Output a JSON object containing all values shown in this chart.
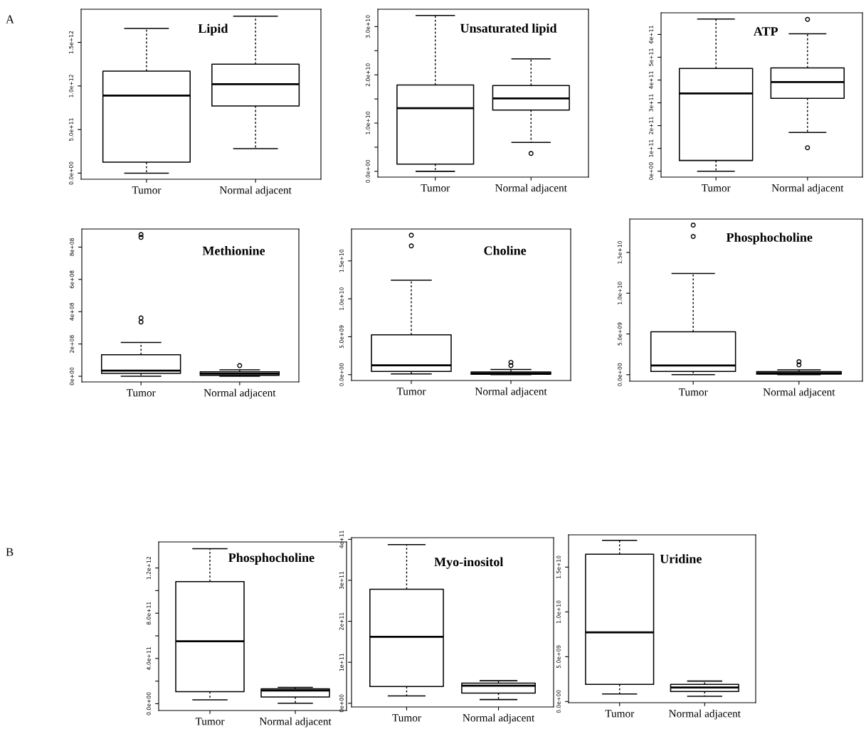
{
  "chart_data": [
    {
      "type": "box",
      "title": "Lipid",
      "annotations": [
        "A"
      ],
      "categories": [
        "Tumor",
        "Normal adjacent"
      ],
      "ylim": [
        -70000000000.0,
        1880000000000.0
      ],
      "yticks": [
        {
          "value": 0,
          "label": "0.0e+00"
        },
        {
          "value": 500000000000.0,
          "label": "5.0e+11"
        },
        {
          "value": 1000000000000.0,
          "label": "1.0e+12"
        },
        {
          "value": 1500000000000.0,
          "label": "1.5e+12"
        }
      ],
      "boxes": [
        {
          "low": 0,
          "q1": 125000000000.0,
          "median": 890000000000.0,
          "q3": 1170000000000.0,
          "high": 1660000000000.0
        },
        {
          "low": 280000000000.0,
          "q1": 770000000000.0,
          "median": 1020000000000.0,
          "q3": 1250000000000.0,
          "high": 1800000000000.0
        }
      ]
    },
    {
      "type": "box",
      "title": "Unsaturated lipid",
      "categories": [
        "Tumor",
        "Normal adjacent"
      ],
      "ylim": [
        -1200000000.0,
        33600000000.0
      ],
      "yticks": [
        {
          "value": 0,
          "label": "0.0e+00"
        },
        {
          "value": 5000000000.0,
          "label": null
        },
        {
          "value": 10000000000.0,
          "label": "1.0e+10"
        },
        {
          "value": 15000000000.0,
          "label": null
        },
        {
          "value": 20000000000.0,
          "label": "2.0e+10"
        },
        {
          "value": 25000000000.0,
          "label": null
        },
        {
          "value": 30000000000.0,
          "label": "3.0e+10"
        }
      ],
      "boxes": [
        {
          "low": 0,
          "q1": 1500000000.0,
          "median": 13100000000.0,
          "q3": 17900000000.0,
          "high": 32300000000.0
        },
        {
          "low": 6000000000.0,
          "q1": 12700000000.0,
          "median": 15100000000.0,
          "q3": 17800000000.0,
          "high": 23300000000.0,
          "outliers": [
            3700000000.0
          ]
        }
      ]
    },
    {
      "type": "box",
      "title": "ATP",
      "categories": [
        "Tumor",
        "Normal adjacent"
      ],
      "ylim": [
        -26000000000.0,
        695000000000.0
      ],
      "yticks": [
        {
          "value": 0,
          "label": "0e+00"
        },
        {
          "value": 100000000000.0,
          "label": "1e+11"
        },
        {
          "value": 200000000000.0,
          "label": "2e+11"
        },
        {
          "value": 300000000000.0,
          "label": "3e+11"
        },
        {
          "value": 400000000000.0,
          "label": "4e+11"
        },
        {
          "value": 500000000000.0,
          "label": "5e+11"
        },
        {
          "value": 600000000000.0,
          "label": "6e+11"
        }
      ],
      "boxes": [
        {
          "low": 0,
          "q1": 47000000000.0,
          "median": 341000000000.0,
          "q3": 451000000000.0,
          "high": 668000000000.0
        },
        {
          "low": 170000000000.0,
          "q1": 320000000000.0,
          "median": 391000000000.0,
          "q3": 453000000000.0,
          "high": 603000000000.0,
          "outliers": [
            103000000000.0,
            666000000000.0
          ]
        }
      ]
    },
    {
      "type": "box",
      "title": "Methionine",
      "categories": [
        "Tumor",
        "Normal adjacent"
      ],
      "ylim": [
        -35000000.0,
        912000000.0
      ],
      "yticks": [
        {
          "value": 0,
          "label": "0e+00"
        },
        {
          "value": 200000000.0,
          "label": "2e+08"
        },
        {
          "value": 400000000.0,
          "label": "4e+08"
        },
        {
          "value": 600000000.0,
          "label": "6e+08"
        },
        {
          "value": 800000000.0,
          "label": "8e+08"
        }
      ],
      "boxes": [
        {
          "low": 0,
          "q1": 18000000.0,
          "median": 35000000.0,
          "q3": 133000000.0,
          "high": 209000000.0,
          "outliers": [
            336000000.0,
            361000000.0,
            860000000.0,
            878000000.0
          ]
        },
        {
          "low": 0,
          "q1": 6000000.0,
          "median": 16000000.0,
          "q3": 28000000.0,
          "high": 40000000.0,
          "outliers": [
            66000000.0
          ]
        }
      ]
    },
    {
      "type": "box",
      "title": "Choline",
      "categories": [
        "Tumor",
        "Normal adjacent"
      ],
      "ylim": [
        -770000000.0,
        19200000000.0
      ],
      "yticks": [
        {
          "value": 0,
          "label": "0.0e+00"
        },
        {
          "value": 5000000000.0,
          "label": "5.0e+09"
        },
        {
          "value": 10000000000.0,
          "label": "1.0e+10"
        },
        {
          "value": 15000000000.0,
          "label": "1.5e+10"
        }
      ],
      "boxes": [
        {
          "low": 100000000.0,
          "q1": 430000000.0,
          "median": 1240000000.0,
          "q3": 5260000000.0,
          "high": 12440000000.0,
          "outliers": [
            16970000000.0,
            18380000000.0
          ]
        },
        {
          "low": 0,
          "q1": 50000000.0,
          "median": 180000000.0,
          "q3": 350000000.0,
          "high": 680000000.0,
          "outliers": [
            1200000000.0,
            1630000000.0
          ]
        }
      ]
    },
    {
      "type": "box",
      "title": "Phosphocholine",
      "categories": [
        "Tumor",
        "Normal adjacent"
      ],
      "ylim": [
        -800000000.0,
        19100000000.0
      ],
      "yticks": [
        {
          "value": 0,
          "label": "0.0e+00"
        },
        {
          "value": 5000000000.0,
          "label": "5.0e+09"
        },
        {
          "value": 10000000000.0,
          "label": "1.0e+10"
        },
        {
          "value": 15000000000.0,
          "label": "1.5e+10"
        }
      ],
      "boxes": [
        {
          "low": 0,
          "q1": 400000000.0,
          "median": 1130000000.0,
          "q3": 5270000000.0,
          "high": 12420000000.0,
          "outliers": [
            16960000000.0,
            18360000000.0
          ]
        },
        {
          "low": 0,
          "q1": 80000000.0,
          "median": 200000000.0,
          "q3": 370000000.0,
          "high": 600000000.0,
          "outliers": [
            1200000000.0,
            1600000000.0
          ]
        }
      ]
    },
    {
      "type": "box",
      "title": "Phosphocholine",
      "annotations": [
        "B"
      ],
      "categories": [
        "Tumor",
        "Normal adjacent"
      ],
      "ylim": [
        -60000000000.0,
        1430000000000.0
      ],
      "yticks": [
        {
          "value": 0,
          "label": "0.0e+00"
        },
        {
          "value": 200000000000.0,
          "label": null
        },
        {
          "value": 400000000000.0,
          "label": "4.0e+11"
        },
        {
          "value": 600000000000.0,
          "label": null
        },
        {
          "value": 800000000000.0,
          "label": "8.0e+11"
        },
        {
          "value": 1000000000000.0,
          "label": null
        },
        {
          "value": 1200000000000.0,
          "label": "1.2e+12"
        }
      ],
      "boxes": [
        {
          "low": 35000000000.0,
          "q1": 106000000000.0,
          "median": 552000000000.0,
          "q3": 1080000000000.0,
          "high": 1370000000000.0
        },
        {
          "low": 4000000000.0,
          "q1": 60000000000.0,
          "median": 117000000000.0,
          "q3": 131000000000.0,
          "high": 145000000000.0
        }
      ]
    },
    {
      "type": "box",
      "title": "Myo-inositol",
      "categories": [
        "Tumor",
        "Normal adjacent"
      ],
      "ylim": [
        -9000000000.0,
        404000000000.0
      ],
      "yticks": [
        {
          "value": 0,
          "label": "0e+00"
        },
        {
          "value": 100000000000.0,
          "label": "1e+11"
        },
        {
          "value": 200000000000.0,
          "label": "2e+11"
        },
        {
          "value": 300000000000.0,
          "label": "3e+11"
        },
        {
          "value": 400000000000.0,
          "label": "4e+11"
        }
      ],
      "boxes": [
        {
          "low": 18000000000.0,
          "q1": 41000000000.0,
          "median": 162000000000.0,
          "q3": 278000000000.0,
          "high": 387000000000.0
        },
        {
          "low": 9000000000.0,
          "q1": 25000000000.0,
          "median": 43000000000.0,
          "q3": 49000000000.0,
          "high": 55000000000.0
        }
      ]
    },
    {
      "type": "box",
      "title": "Uridine",
      "categories": [
        "Tumor",
        "Normal adjacent"
      ],
      "ylim": [
        -130000000.0,
        18600000000.0
      ],
      "yticks": [
        {
          "value": 0,
          "label": "0.0e+00"
        },
        {
          "value": 5000000000.0,
          "label": "5.0e+09"
        },
        {
          "value": 10000000000.0,
          "label": "1.0e+10"
        },
        {
          "value": 15000000000.0,
          "label": "1.5e+10"
        }
      ],
      "boxes": [
        {
          "low": 850000000.0,
          "q1": 1920000000.0,
          "median": 7720000000.0,
          "q3": 16430000000.0,
          "high": 17990000000.0
        },
        {
          "low": 580000000.0,
          "q1": 1120000000.0,
          "median": 1560000000.0,
          "q3": 1920000000.0,
          "high": 2280000000.0
        }
      ]
    }
  ]
}
